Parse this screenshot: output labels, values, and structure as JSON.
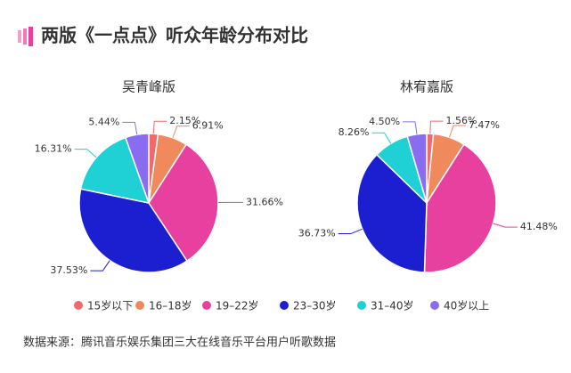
{
  "title": "两版《一点点》听众年龄分布对比",
  "chart_data": [
    {
      "type": "pie",
      "title": "吴青峰版",
      "categories": [
        "15岁以下",
        "16–18岁",
        "19–22岁",
        "23–30岁",
        "31–40岁",
        "40岁以上"
      ],
      "values": [
        2.15,
        6.91,
        31.66,
        37.53,
        16.31,
        5.44
      ],
      "value_labels": [
        "2.15%",
        "6.91%",
        "31.66%",
        "37.53%",
        "16.31%",
        "5.44%"
      ],
      "colors": [
        "#f06a6a",
        "#f08a5d",
        "#e8409e",
        "#1c1fd0",
        "#1fd1d4",
        "#8a6cf0"
      ]
    },
    {
      "type": "pie",
      "title": "林宥嘉版",
      "categories": [
        "15岁以下",
        "16–18岁",
        "19–22岁",
        "23–30岁",
        "31–40岁",
        "40岁以上"
      ],
      "values": [
        1.56,
        7.47,
        41.48,
        36.73,
        8.26,
        4.5
      ],
      "value_labels": [
        "1.56%",
        "7.47%",
        "41.48%",
        "36.73%",
        "8.26%",
        "4.50%"
      ],
      "colors": [
        "#f06a6a",
        "#f08a5d",
        "#e8409e",
        "#1c1fd0",
        "#1fd1d4",
        "#8a6cf0"
      ]
    }
  ],
  "source": "数据来源：腾讯音乐娱乐集团三大在线音乐平台用户听歌数据"
}
